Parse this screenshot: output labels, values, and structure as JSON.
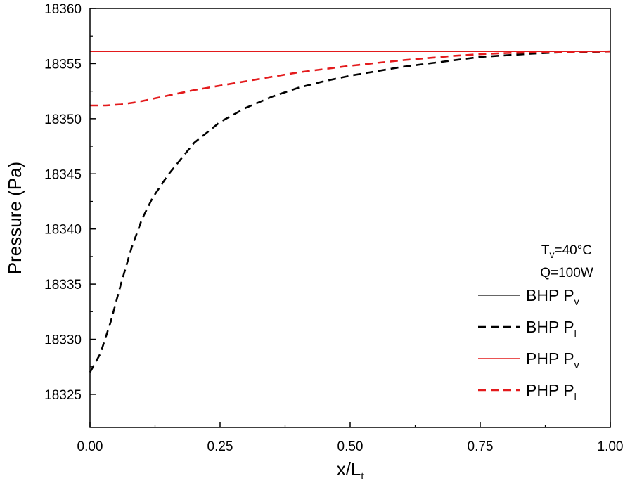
{
  "chart_data": {
    "type": "line",
    "xlabel": "x/L",
    "xlabel_sub": "t",
    "ylabel": "Pressure (Pa)",
    "xlim": [
      0,
      1
    ],
    "ylim": [
      18322,
      18360
    ],
    "xticks": [
      0,
      0.25,
      0.5,
      0.75,
      1.0
    ],
    "xtick_labels": [
      "0.00",
      "0.25",
      "0.50",
      "0.75",
      "1.00"
    ],
    "yticks": [
      18325,
      18330,
      18335,
      18340,
      18345,
      18350,
      18355,
      18360
    ],
    "ytick_labels": [
      "18325",
      "18330",
      "18335",
      "18340",
      "18345",
      "18350",
      "18355",
      "18360"
    ],
    "annotations": [
      {
        "main": "T",
        "sub": "v",
        "rest": "=40°C"
      },
      {
        "main": "Q=100W",
        "sub": "",
        "rest": ""
      }
    ],
    "legend_position": "right",
    "series": [
      {
        "name": "BHP P",
        "name_sub": "v",
        "color": "#333333",
        "dash": "solid",
        "x": [
          0,
          0.25,
          0.5,
          0.75,
          1.0
        ],
        "y": [
          18356.1,
          18356.1,
          18356.1,
          18356.1,
          18356.1
        ]
      },
      {
        "name": "BHP P",
        "name_sub": "l",
        "color": "#000000",
        "dash": "dashed",
        "x": [
          0,
          0.02,
          0.04,
          0.06,
          0.08,
          0.1,
          0.12,
          0.15,
          0.2,
          0.25,
          0.3,
          0.35,
          0.4,
          0.45,
          0.5,
          0.55,
          0.6,
          0.65,
          0.7,
          0.75,
          0.8,
          0.85,
          0.9,
          0.95,
          1.0
        ],
        "y": [
          18327.0,
          18328.7,
          18331.6,
          18335.1,
          18338.3,
          18340.9,
          18342.8,
          18344.9,
          18347.8,
          18349.7,
          18351.0,
          18352.0,
          18352.8,
          18353.4,
          18353.9,
          18354.3,
          18354.7,
          18355.0,
          18355.3,
          18355.6,
          18355.75,
          18355.9,
          18356.0,
          18356.05,
          18356.1
        ]
      },
      {
        "name": "PHP P",
        "name_sub": "v",
        "color": "#e31a1c",
        "dash": "solid",
        "x": [
          0,
          0.25,
          0.5,
          0.75,
          1.0
        ],
        "y": [
          18356.1,
          18356.1,
          18356.1,
          18356.1,
          18356.1
        ]
      },
      {
        "name": "PHP P",
        "name_sub": "l",
        "color": "#e31a1c",
        "dash": "dashed",
        "x": [
          0,
          0.03,
          0.06,
          0.09,
          0.12,
          0.15,
          0.2,
          0.25,
          0.3,
          0.35,
          0.4,
          0.45,
          0.5,
          0.55,
          0.6,
          0.65,
          0.7,
          0.75,
          0.8,
          0.85,
          0.9,
          0.95,
          1.0
        ],
        "y": [
          18351.2,
          18351.2,
          18351.3,
          18351.5,
          18351.8,
          18352.1,
          18352.6,
          18353.0,
          18353.4,
          18353.8,
          18354.2,
          18354.5,
          18354.8,
          18355.05,
          18355.3,
          18355.5,
          18355.7,
          18355.85,
          18355.95,
          18356.0,
          18356.05,
          18356.08,
          18356.1
        ]
      }
    ]
  }
}
